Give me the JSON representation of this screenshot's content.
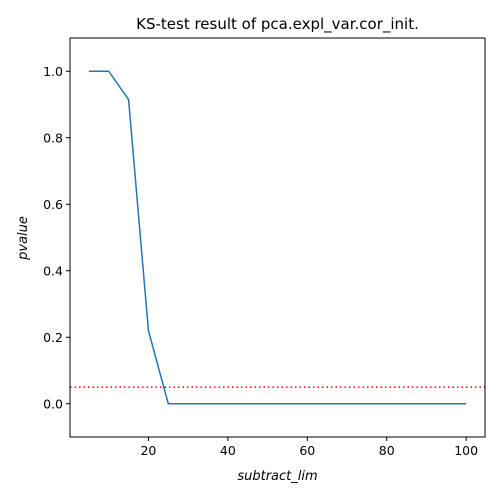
{
  "chart_data": {
    "type": "line",
    "title": "KS-test result of pca.expl_var.cor_init.",
    "xlabel": "subtract_lim",
    "ylabel": "pvalue",
    "xlim": [
      0.25,
      104.75
    ],
    "ylim": [
      -0.1,
      1.1
    ],
    "xticks": [
      20,
      40,
      60,
      80,
      100
    ],
    "yticks": [
      0.0,
      0.2,
      0.4,
      0.6,
      0.8,
      1.0
    ],
    "xtick_labels": [
      "20",
      "40",
      "60",
      "80",
      "100"
    ],
    "ytick_labels": [
      "0.0",
      "0.2",
      "0.4",
      "0.6",
      "0.8",
      "1.0"
    ],
    "grid": false,
    "series": [
      {
        "color": "#1f77b4",
        "x": [
          5,
          10,
          15,
          20,
          25,
          30,
          35,
          40,
          45,
          50,
          55,
          60,
          65,
          70,
          75,
          80,
          85,
          90,
          95,
          100
        ],
        "y": [
          1.0,
          1.0,
          0.915,
          0.22,
          0.0,
          0.0,
          0.0,
          0.0,
          0.0,
          0.0,
          0.0,
          0.0,
          0.0,
          0.0,
          0.0,
          0.0,
          0.0,
          0.0,
          0.0,
          0.0
        ]
      }
    ],
    "reference_line": {
      "y": 0.05,
      "color": "#ff0000",
      "style": "dotted"
    }
  }
}
